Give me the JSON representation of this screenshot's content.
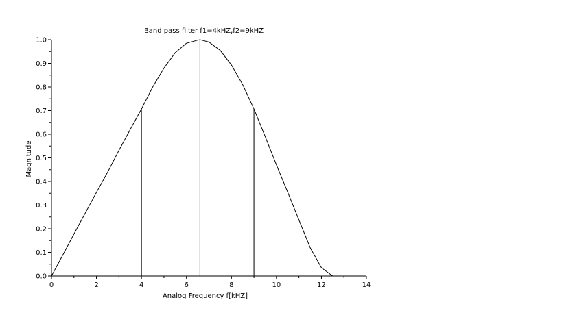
{
  "chart_data": {
    "type": "line",
    "title": "Band pass filter f1=4kHZ,f2=9kHZ",
    "xlabel": "Analog Frequency f[kHZ]",
    "ylabel": "Magnitude",
    "xlim": [
      0,
      14
    ],
    "ylim": [
      0,
      1
    ],
    "x_ticks": [
      0,
      2,
      4,
      6,
      8,
      10,
      12,
      14
    ],
    "y_ticks": [
      0.0,
      0.1,
      0.2,
      0.3,
      0.4,
      0.5,
      0.6,
      0.7,
      0.8,
      0.9,
      1.0
    ],
    "x_tick_labels": [
      "0",
      "2",
      "4",
      "6",
      "8",
      "10",
      "12",
      "14"
    ],
    "y_tick_labels": [
      "0.0",
      "0.1",
      "0.2",
      "0.3",
      "0.4",
      "0.5",
      "0.6",
      "0.7",
      "0.8",
      "0.9",
      "1.0"
    ],
    "grid": false,
    "series": [
      {
        "x": [
          0,
          0.5,
          1.0,
          1.5,
          2.0,
          2.5,
          3.0,
          3.5,
          4.0,
          4.5,
          5.0,
          5.5,
          6.0,
          6.5,
          6.6,
          7.0,
          7.5,
          8.0,
          8.5,
          9.0,
          9.5,
          10.0,
          10.5,
          11.0,
          11.5,
          12.0,
          12.5
        ],
        "y": [
          0.0,
          0.088,
          0.178,
          0.266,
          0.354,
          0.44,
          0.532,
          0.62,
          0.707,
          0.8,
          0.88,
          0.945,
          0.985,
          0.998,
          1.0,
          0.99,
          0.955,
          0.893,
          0.81,
          0.707,
          0.59,
          0.47,
          0.355,
          0.237,
          0.12,
          0.035,
          0.0
        ]
      }
    ],
    "vertical_lines": [
      {
        "x": 4.0,
        "y": 0.707
      },
      {
        "x": 6.6,
        "y": 1.0
      },
      {
        "x": 9.0,
        "y": 0.707
      }
    ]
  }
}
